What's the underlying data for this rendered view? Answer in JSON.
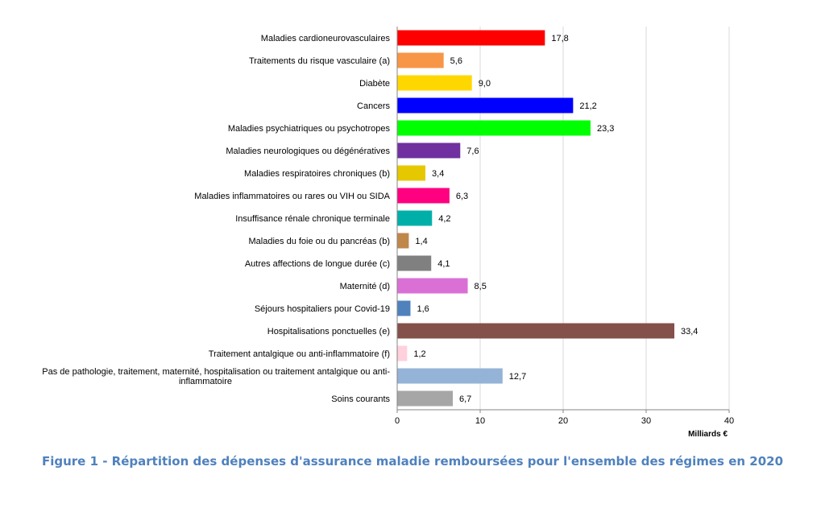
{
  "caption": "Figure 1 - Répartition des dépenses d'assurance maladie remboursées pour l'ensemble des régimes en 2020",
  "chart_data": {
    "type": "bar",
    "orientation": "horizontal",
    "xunit": "Milliards €",
    "xlim": [
      0,
      40
    ],
    "xticks": [
      0,
      10,
      20,
      30,
      40
    ],
    "grid": true,
    "legend": "none",
    "categories": [
      {
        "label": "Maladies cardioneurovasculaires",
        "value": 17.8,
        "value_label": "17,8",
        "color": "#ff0000"
      },
      {
        "label": "Traitements du risque vasculaire (a)",
        "value": 5.6,
        "value_label": "5,6",
        "color": "#f79646"
      },
      {
        "label": "Diabète",
        "value": 9.0,
        "value_label": "9,0",
        "color": "#ffd700"
      },
      {
        "label": "Cancers",
        "value": 21.2,
        "value_label": "21,2",
        "color": "#0000ff"
      },
      {
        "label": "Maladies psychiatriques ou psychotropes",
        "value": 23.3,
        "value_label": "23,3",
        "color": "#00ff00"
      },
      {
        "label": "Maladies neurologiques ou dégénératives",
        "value": 7.6,
        "value_label": "7,6",
        "color": "#7030a0"
      },
      {
        "label": "Maladies respiratoires chroniques (b)",
        "value": 3.4,
        "value_label": "3,4",
        "color": "#e6c800"
      },
      {
        "label": "Maladies inflammatoires ou rares ou VIH ou SIDA",
        "value": 6.3,
        "value_label": "6,3",
        "color": "#ff0080"
      },
      {
        "label": "Insuffisance rénale chronique terminale",
        "value": 4.2,
        "value_label": "4,2",
        "color": "#00b0a8"
      },
      {
        "label": "Maladies du foie ou du pancréas (b)",
        "value": 1.4,
        "value_label": "1,4",
        "color": "#c0874a"
      },
      {
        "label": "Autres affections de longue durée (c)",
        "value": 4.1,
        "value_label": "4,1",
        "color": "#808080"
      },
      {
        "label": "Maternité (d)",
        "value": 8.5,
        "value_label": "8,5",
        "color": "#da70d6"
      },
      {
        "label": "Séjours hospitaliers pour Covid-19",
        "value": 1.6,
        "value_label": "1,6",
        "color": "#4f81bd"
      },
      {
        "label": "Hospitalisations ponctuelles (e)",
        "value": 33.4,
        "value_label": "33,4",
        "color": "#84504a"
      },
      {
        "label": "Traitement antalgique ou anti-inflammatoire (f)",
        "value": 1.2,
        "value_label": "1,2",
        "color": "#ffd1dc"
      },
      {
        "label": [
          "Pas de pathologie, traitement, maternité, hospitalisation ou traitement antalgique ou anti-",
          "inflammatoire"
        ],
        "value": 12.7,
        "value_label": "12,7",
        "color": "#95b3d7"
      },
      {
        "label": "Soins courants",
        "value": 6.7,
        "value_label": "6,7",
        "color": "#a6a6a6"
      }
    ]
  }
}
